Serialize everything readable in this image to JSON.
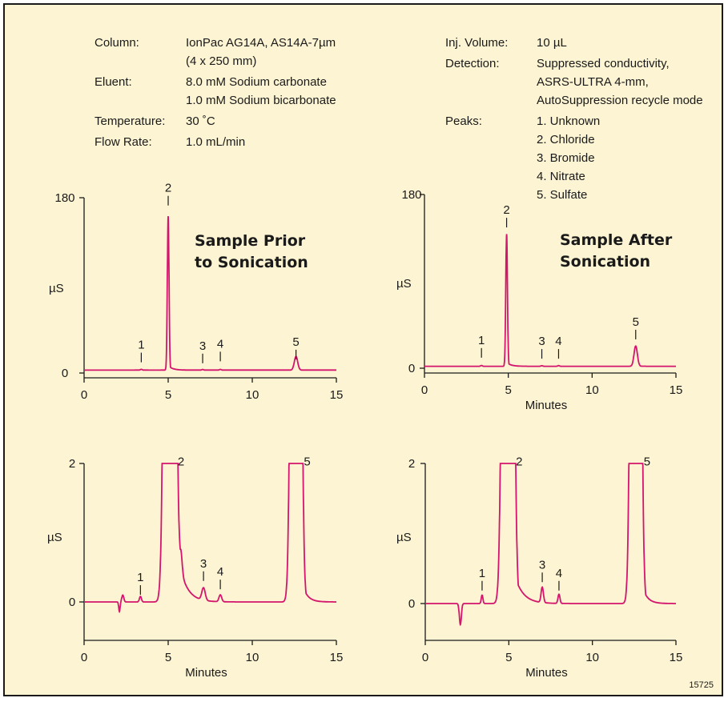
{
  "conditions_left": [
    {
      "label": "Column:",
      "lines": [
        "IonPac AG14A, AS14A-7µm",
        "(4 x 250 mm)"
      ]
    },
    {
      "label": "Eluent:",
      "lines": [
        "8.0 mM Sodium carbonate",
        "1.0 mM Sodium bicarbonate"
      ]
    },
    {
      "label": "Temperature:",
      "lines": [
        "30 ˚C"
      ]
    },
    {
      "label": "Flow Rate:",
      "lines": [
        "1.0 mL/min"
      ]
    }
  ],
  "conditions_right": [
    {
      "label": "Inj. Volume:",
      "lines": [
        "10 µL"
      ]
    },
    {
      "label": "Detection:",
      "lines": [
        "Suppressed conductivity,",
        "ASRS-ULTRA 4-mm,",
        "AutoSuppression recycle mode"
      ]
    },
    {
      "label": "Peaks:",
      "lines": [
        "1. Unknown",
        "2. Chloride",
        "3. Bromide",
        "4. Nitrate",
        "5. Sulfate"
      ]
    }
  ],
  "figure_number": "15725",
  "colors": {
    "trace": "#d4156e",
    "axis": "#1a1a1a",
    "background": "#fcf4d2"
  },
  "chart_data": [
    {
      "type": "line",
      "title": "Sample Prior to Sonication",
      "title_lines": [
        "Sample Prior",
        "to Sonication"
      ],
      "ylabel": "µS",
      "xlabel": "",
      "xlim": [
        0,
        15
      ],
      "ylim": [
        0,
        180
      ],
      "xticks": [
        "0",
        "5",
        "10",
        "15"
      ],
      "yticks": [
        "0",
        "180"
      ],
      "baseline": 3,
      "peaks": [
        {
          "label": "1",
          "time": 3.4,
          "height": 0.8,
          "width": 0.05,
          "tail": 0
        },
        {
          "label": "2",
          "time": 5.0,
          "height": 158,
          "width": 0.05,
          "tail": 0.25
        },
        {
          "label": "3",
          "time": 7.05,
          "height": 0.6,
          "width": 0.05,
          "tail": 0
        },
        {
          "label": "4",
          "time": 8.1,
          "height": 0.7,
          "width": 0.05,
          "tail": 0
        },
        {
          "label": "5",
          "time": 12.6,
          "height": 14,
          "width": 0.1,
          "tail": 0.2
        }
      ],
      "peak_label_y": [
        25,
        186,
        24,
        26,
        28
      ]
    },
    {
      "type": "line",
      "title": "Sample After Sonication",
      "title_lines": [
        "Sample After",
        "Sonication"
      ],
      "ylabel": "µS",
      "xlabel": "Minutes",
      "xlim": [
        0,
        15
      ],
      "ylim": [
        0,
        180
      ],
      "xticks": [
        "0",
        "5",
        "10",
        "15"
      ],
      "yticks": [
        "0",
        "180"
      ],
      "baseline": 2,
      "peaks": [
        {
          "label": "1",
          "time": 3.4,
          "height": 0.8,
          "width": 0.05,
          "tail": 0
        },
        {
          "label": "2",
          "time": 4.9,
          "height": 137,
          "width": 0.05,
          "tail": 0.25
        },
        {
          "label": "3",
          "time": 7.0,
          "height": 0.6,
          "width": 0.05,
          "tail": 0
        },
        {
          "label": "4",
          "time": 8.0,
          "height": 0.7,
          "width": 0.05,
          "tail": 0
        },
        {
          "label": "5",
          "time": 12.6,
          "height": 21,
          "width": 0.1,
          "tail": 0.2
        }
      ],
      "peak_label_y": [
        25,
        160,
        24,
        24,
        44
      ]
    },
    {
      "type": "line",
      "title": "",
      "ylabel": "µS",
      "xlabel": "Minutes",
      "xlim": [
        0,
        15
      ],
      "ylim": [
        -0.9,
        2
      ],
      "xticks": [
        "0",
        "5",
        "10",
        "15"
      ],
      "yticks": [
        "0",
        "2"
      ],
      "baseline": 0,
      "dips": [
        {
          "time": 2.1,
          "depth": -0.14,
          "width": 0.04
        },
        {
          "time": 2.3,
          "depth": 0.1,
          "width": 0.06
        },
        {
          "time": 4.8,
          "depth": -0.16,
          "width": 0.03
        }
      ],
      "peaks": [
        {
          "label": "1",
          "time": 3.35,
          "height": 0.08,
          "width": 0.06,
          "tail": 0
        },
        {
          "label": "2",
          "time": 5.1,
          "height": 30,
          "width": 0.2,
          "tail": 0.5,
          "shoulder": {
            "time": 5.75,
            "height": 0.5
          }
        },
        {
          "label": "3",
          "time": 7.1,
          "height": 0.18,
          "width": 0.1,
          "tail": 0.2
        },
        {
          "label": "4",
          "time": 8.1,
          "height": 0.1,
          "width": 0.08,
          "tail": 0.15
        },
        {
          "label": "5",
          "time": 12.6,
          "height": 30,
          "width": 0.18,
          "tail": 0.3
        }
      ],
      "peak_label_y": [
        0.3,
        1.97,
        0.5,
        0.38,
        1.97
      ]
    },
    {
      "type": "line",
      "title": "",
      "ylabel": "µS",
      "xlabel": "Minutes",
      "xlim": [
        0,
        15
      ],
      "ylim": [
        -0.9,
        2
      ],
      "xticks": [
        "0",
        "5",
        "10",
        "15"
      ],
      "yticks": [
        "0",
        "2"
      ],
      "baseline": 0,
      "dips": [
        {
          "time": 2.1,
          "depth": -0.3,
          "width": 0.06
        }
      ],
      "peaks": [
        {
          "label": "1",
          "time": 3.4,
          "height": 0.12,
          "width": 0.05,
          "tail": 0
        },
        {
          "label": "2",
          "time": 4.95,
          "height": 30,
          "width": 0.2,
          "tail": 0.5
        },
        {
          "label": "3",
          "time": 7.0,
          "height": 0.22,
          "width": 0.07,
          "tail": 0.15
        },
        {
          "label": "4",
          "time": 8.0,
          "height": 0.13,
          "width": 0.06,
          "tail": 0.1
        },
        {
          "label": "5",
          "time": 12.6,
          "height": 30,
          "width": 0.18,
          "tail": 0.3
        }
      ],
      "peak_label_y": [
        0.38,
        1.97,
        0.5,
        0.38,
        1.97
      ]
    }
  ]
}
